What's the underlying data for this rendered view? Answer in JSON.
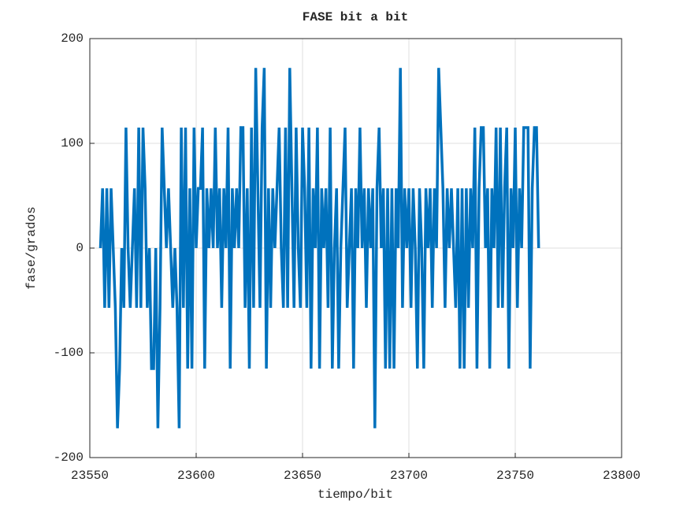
{
  "chart_data": {
    "type": "line",
    "title": "FASE bit a bit",
    "x_label": "tiempo/bit",
    "y_label": "fase/grados",
    "xlim": [
      23550,
      23800
    ],
    "xticks": [
      23550,
      23600,
      23650,
      23700,
      23750,
      23800
    ],
    "ylim": [
      -200,
      200
    ],
    "yticks": [
      -200,
      -100,
      0,
      100,
      200
    ],
    "grid": true,
    "x": [
      23555,
      23556,
      23557,
      23558,
      23559,
      23560,
      23561,
      23562,
      23563,
      23564,
      23565,
      23566,
      23567,
      23568,
      23569,
      23570,
      23571,
      23572,
      23573,
      23574,
      23575,
      23576,
      23577,
      23578,
      23579,
      23580,
      23581,
      23582,
      23583,
      23584,
      23585,
      23586,
      23587,
      23588,
      23589,
      23590,
      23591,
      23592,
      23593,
      23594,
      23595,
      23596,
      23597,
      23598,
      23599,
      23600,
      23601,
      23602,
      23603,
      23604,
      23605,
      23606,
      23607,
      23608,
      23609,
      23610,
      23611,
      23612,
      23613,
      23614,
      23615,
      23616,
      23617,
      23618,
      23619,
      23620,
      23621,
      23622,
      23623,
      23624,
      23625,
      23626,
      23627,
      23628,
      23629,
      23630,
      23631,
      23632,
      23633,
      23634,
      23635,
      23636,
      23637,
      23638,
      23639,
      23640,
      23641,
      23642,
      23643,
      23644,
      23645,
      23646,
      23647,
      23648,
      23649,
      23650,
      23651,
      23652,
      23653,
      23654,
      23655,
      23656,
      23657,
      23658,
      23659,
      23660,
      23661,
      23662,
      23663,
      23664,
      23665,
      23666,
      23667,
      23668,
      23669,
      23670,
      23671,
      23672,
      23673,
      23674,
      23675,
      23676,
      23677,
      23678,
      23679,
      23680,
      23681,
      23682,
      23683,
      23684,
      23685,
      23686,
      23687,
      23688,
      23689,
      23690,
      23691,
      23692,
      23693,
      23694,
      23695,
      23696,
      23697,
      23698,
      23699,
      23700,
      23701,
      23702,
      23703,
      23704,
      23705,
      23706,
      23707,
      23708,
      23709,
      23710,
      23711,
      23712,
      23713,
      23714,
      23715,
      23716,
      23717,
      23718,
      23719,
      23720,
      23721,
      23722,
      23723,
      23724,
      23725,
      23726,
      23727,
      23728,
      23729,
      23730,
      23731,
      23732,
      23733,
      23734,
      23735,
      23736,
      23737,
      23738,
      23739,
      23740,
      23741,
      23742,
      23743,
      23744,
      23745,
      23746,
      23747,
      23748,
      23749,
      23750,
      23751,
      23752,
      23753,
      23754,
      23755,
      23756,
      23757,
      23758,
      23759,
      23760,
      23761
    ],
    "series": [
      {
        "name": "fase",
        "color": "#0072bd",
        "values": [
          0,
          57,
          -57,
          57,
          -57,
          57,
          0,
          -57,
          -172,
          -115,
          0,
          -57,
          115,
          0,
          -57,
          0,
          57,
          -57,
          115,
          -57,
          115,
          57,
          -57,
          0,
          -115,
          -115,
          0,
          -172,
          -57,
          115,
          57,
          0,
          57,
          0,
          -57,
          0,
          -57,
          -172,
          115,
          -57,
          115,
          -115,
          57,
          -115,
          115,
          0,
          57,
          57,
          115,
          -115,
          57,
          0,
          57,
          0,
          115,
          0,
          57,
          -57,
          57,
          0,
          115,
          -115,
          57,
          0,
          57,
          0,
          115,
          115,
          -57,
          57,
          -115,
          115,
          -57,
          172,
          57,
          -57,
          115,
          172,
          -115,
          57,
          -57,
          57,
          0,
          57,
          115,
          0,
          -57,
          115,
          -57,
          172,
          57,
          -57,
          115,
          0,
          -57,
          115,
          57,
          -57,
          115,
          -115,
          57,
          0,
          115,
          -115,
          57,
          0,
          57,
          -57,
          115,
          -115,
          0,
          57,
          -115,
          0,
          57,
          115,
          -57,
          0,
          57,
          -115,
          57,
          0,
          115,
          0,
          57,
          -57,
          57,
          0,
          57,
          -172,
          57,
          115,
          0,
          57,
          -115,
          57,
          -115,
          57,
          -115,
          57,
          0,
          172,
          -57,
          57,
          0,
          57,
          -57,
          57,
          0,
          -115,
          57,
          0,
          -115,
          57,
          0,
          57,
          -57,
          57,
          0,
          172,
          115,
          57,
          -57,
          57,
          0,
          57,
          0,
          -57,
          57,
          -115,
          57,
          -115,
          57,
          -57,
          57,
          0,
          115,
          -115,
          57,
          115,
          115,
          0,
          57,
          -115,
          57,
          0,
          115,
          -57,
          115,
          -57,
          57,
          115,
          -115,
          57,
          0,
          115,
          -57,
          57,
          0,
          115,
          115,
          115,
          -115,
          57,
          115,
          115,
          0
        ]
      }
    ]
  }
}
